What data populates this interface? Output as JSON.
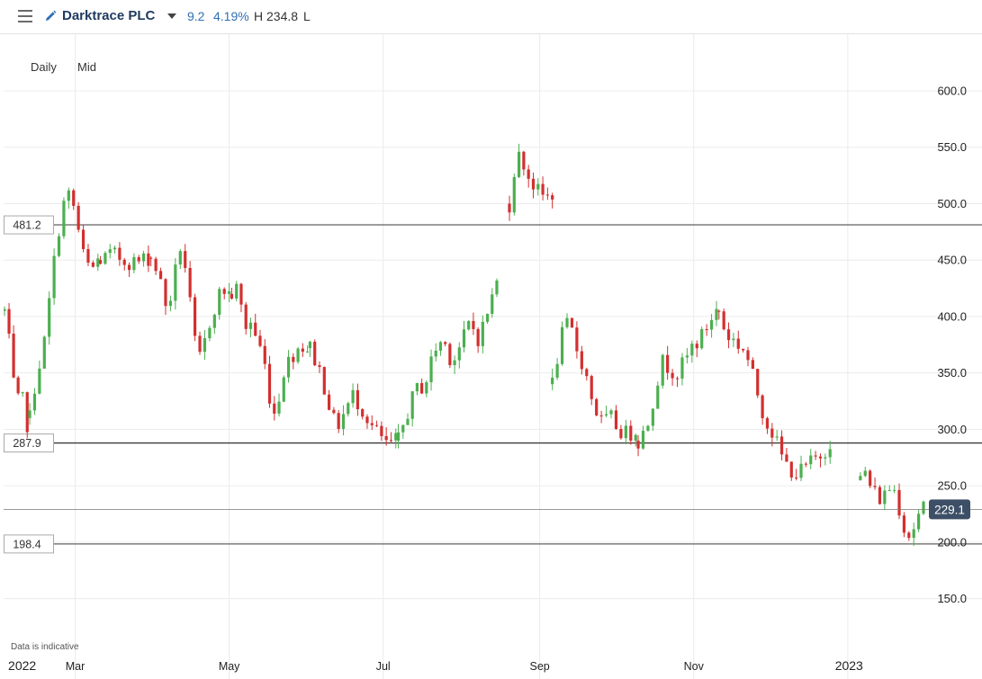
{
  "header": {
    "menu_icon": "hamburger-menu-icon",
    "edit_icon": "pencil-icon",
    "title": "Darktrace PLC",
    "change_abs": "9.2",
    "change_pct": "4.19%",
    "high_label": "H 234.8",
    "low_label": "L",
    "change_color": "#2f6fb4"
  },
  "toolbar": {
    "interval": "Daily",
    "price_type": "Mid"
  },
  "footer_note": "Data is indicative",
  "colors": {
    "up": "#4caf50",
    "down": "#d32f2f",
    "last_price_bg": "#3d4f66"
  },
  "chart_data": {
    "type": "candlestick",
    "title": "",
    "xlabel": "",
    "ylabel": "",
    "ylim": [
      100,
      640
    ],
    "y_ticks": [
      "600.0",
      "550.0",
      "500.0",
      "450.0",
      "400.0",
      "350.0",
      "300.0",
      "250.0",
      "200.0",
      "150.0"
    ],
    "x_ticks": [
      {
        "label": "2022",
        "date": "2022-01-31",
        "year": true
      },
      {
        "label": "Mar",
        "date": "2022-03-01"
      },
      {
        "label": "May",
        "date": "2022-05-01"
      },
      {
        "label": "Jul",
        "date": "2022-07-01"
      },
      {
        "label": "Sep",
        "date": "2022-09-01"
      },
      {
        "label": "Nov",
        "date": "2022-11-01"
      },
      {
        "label": "2023",
        "date": "2023-01-01",
        "year": true
      }
    ],
    "horizontal_levels": [
      {
        "label": "481.2",
        "value": 481.2
      },
      {
        "label": "287.9",
        "value": 287.9
      },
      {
        "label": "198.4",
        "value": 198.4
      }
    ],
    "last_price": {
      "label": "229.1",
      "value": 229.1
    },
    "grid": true,
    "segments": [
      {
        "start": "2022-02-01",
        "end": "2022-02-10",
        "points": [
          405,
          370,
          320,
          330,
          305
        ]
      },
      {
        "start": "2022-02-11",
        "end": "2022-03-10",
        "points": [
          310,
          350,
          370,
          420,
          470,
          500,
          510,
          480,
          450,
          440,
          450
        ]
      },
      {
        "start": "2022-03-11",
        "end": "2022-03-30",
        "points": [
          450,
          455,
          450,
          448,
          452
        ]
      },
      {
        "start": "2022-03-31",
        "end": "2022-05-01",
        "points": [
          452,
          440,
          410,
          420,
          465,
          440,
          380,
          360,
          390,
          410,
          425,
          420
        ]
      },
      {
        "start": "2022-05-02",
        "end": "2022-06-01",
        "points": [
          420,
          425,
          390,
          395,
          380,
          365,
          330,
          310,
          350,
          360,
          370,
          375,
          372
        ]
      },
      {
        "start": "2022-06-02",
        "end": "2022-07-06",
        "points": [
          372,
          355,
          330,
          300,
          315,
          330,
          320,
          305,
          295,
          285,
          290
        ]
      },
      {
        "start": "2022-07-07",
        "end": "2022-08-15",
        "points": [
          290,
          315,
          335,
          340,
          370,
          380,
          360,
          375,
          395,
          380,
          405,
          430
        ]
      },
      {
        "start": "2022-08-20",
        "end": "2022-09-06",
        "points": [
          500,
          545,
          535,
          520,
          510,
          505,
          510
        ]
      },
      {
        "start": "2022-09-06",
        "end": "2022-10-09",
        "points": [
          340,
          380,
          395,
          370,
          350,
          320,
          305,
          310,
          300,
          295,
          300
        ]
      },
      {
        "start": "2022-10-10",
        "end": "2022-11-10",
        "points": [
          290,
          300,
          330,
          360,
          355,
          350,
          360,
          375,
          380,
          395,
          405
        ]
      },
      {
        "start": "2022-11-11",
        "end": "2022-12-25",
        "points": [
          405,
          385,
          380,
          375,
          370,
          350,
          330,
          310,
          300,
          285,
          270,
          265,
          260,
          265,
          270,
          275,
          280,
          290
        ]
      },
      {
        "start": "2023-01-06",
        "end": "2023-01-31",
        "points": [
          255,
          262,
          248,
          242,
          238,
          245,
          252,
          240,
          218,
          205,
          212,
          222,
          229
        ]
      }
    ]
  }
}
